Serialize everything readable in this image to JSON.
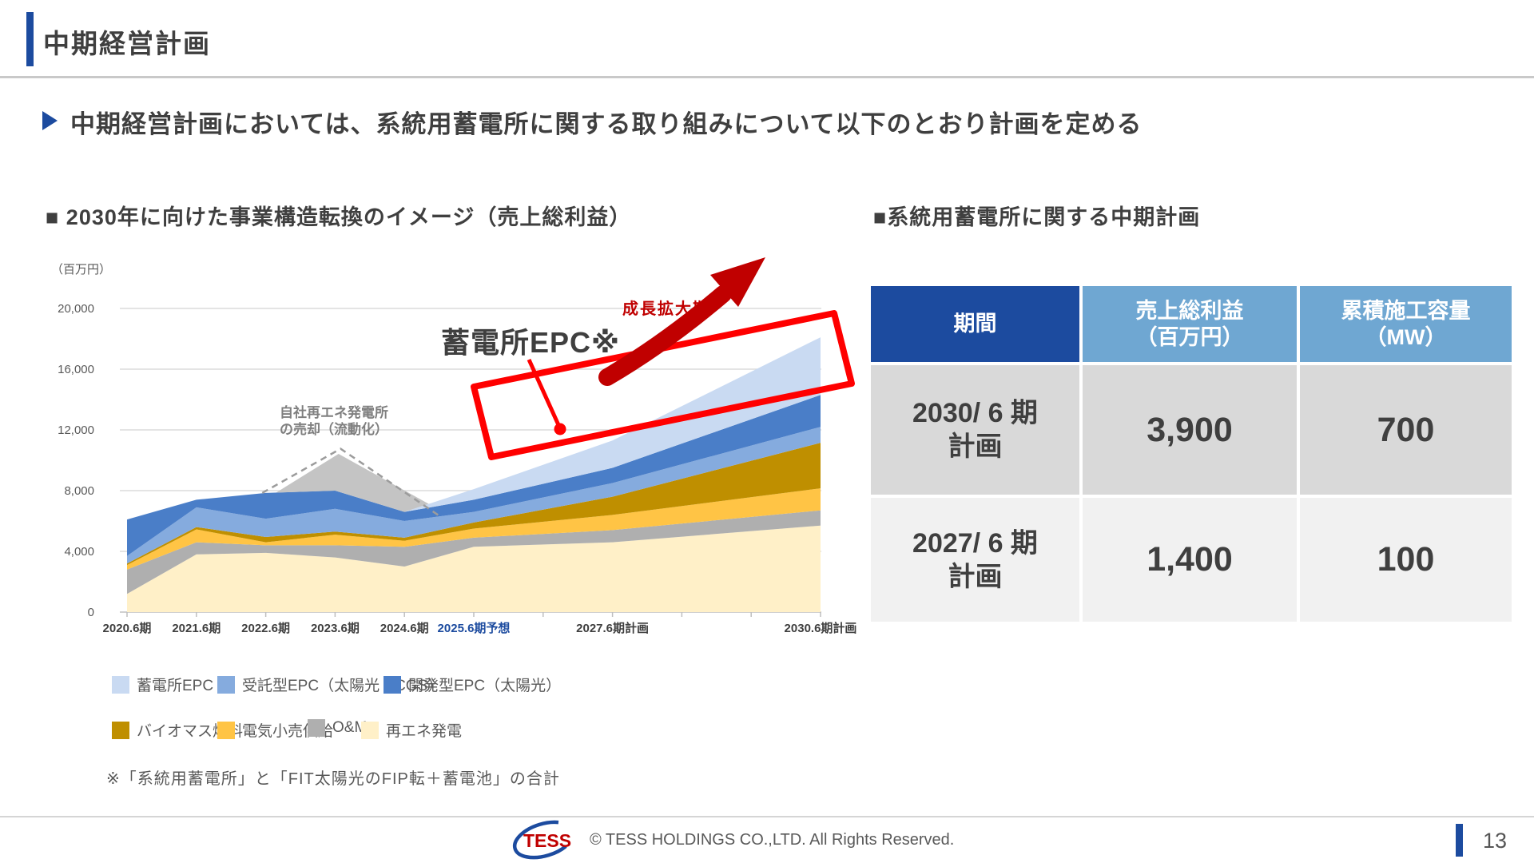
{
  "header": {
    "title": "中期経営計画"
  },
  "lead": {
    "text": "中期経営計画においては、系統用蓄電所に関する取り組みについて以下のとおり計画を定める"
  },
  "sections": {
    "chart_title": "■ 2030年に向けた事業構造転換のイメージ（売上総利益）",
    "table_title": "■系統用蓄電所に関する中期計画"
  },
  "chart_data": {
    "type": "area",
    "stacked": true,
    "title": "2030年に向けた事業構造転換のイメージ（売上総利益）",
    "ylabel": "（百万円）",
    "ylim": [
      0,
      20000
    ],
    "yticks": [
      0,
      4000,
      8000,
      12000,
      16000,
      20000
    ],
    "grid": true,
    "categories": [
      "2020.6期",
      "2021.6期",
      "2022.6期",
      "2023.6期",
      "2024.6期",
      "2025.6期予想",
      "2027.6期計画",
      "2030.6期計画"
    ],
    "x_years": [
      2020,
      2021,
      2022,
      2023,
      2024,
      2025,
      2027,
      2030
    ],
    "emphasis_index": 5,
    "series": [
      {
        "name": "再エネ発電",
        "color": "#FFF0C8",
        "values": [
          1200,
          3800,
          3900,
          3600,
          3000,
          4300,
          4600,
          5700
        ]
      },
      {
        "name": "O&M",
        "color": "#AFAFAF",
        "values": [
          1600,
          800,
          500,
          800,
          1300,
          600,
          800,
          1000
        ]
      },
      {
        "name": "電気小売供給",
        "color": "#FFC445",
        "values": [
          300,
          850,
          200,
          700,
          400,
          600,
          1000,
          1450
        ]
      },
      {
        "name": "バイオマス燃料",
        "color": "#BF8F00",
        "values": [
          100,
          150,
          350,
          200,
          200,
          400,
          1200,
          3000
        ]
      },
      {
        "name": "受託型EPC（太陽光・CGS）",
        "color": "#85ABDE",
        "values": [
          500,
          1300,
          1200,
          1500,
          1100,
          700,
          900,
          1050
        ]
      },
      {
        "name": "開発型EPC（太陽光）",
        "color": "#4A7EC8",
        "values": [
          2400,
          500,
          1700,
          1200,
          600,
          800,
          1000,
          2100
        ]
      },
      {
        "name": "蓄電所EPC",
        "color": "#C9DAF2",
        "values": [
          0,
          0,
          0,
          0,
          0,
          700,
          1800,
          3800
        ]
      }
    ],
    "overlay": {
      "name": "自社再エネ発電所の売却（流動化）",
      "fill_color": "#C4C4C4",
      "dash_color": "#9C9C9C",
      "fill_points": [
        [
          2022.15,
          7870
        ],
        [
          2023.05,
          10420
        ],
        [
          2024.35,
          7125
        ],
        [
          2024.0,
          6600
        ],
        [
          2023.5,
          7300
        ],
        [
          2023.0,
          8000
        ],
        [
          2022.5,
          7920
        ]
      ],
      "dash_points": [
        [
          2021.95,
          7850
        ],
        [
          2023.08,
          10760
        ],
        [
          2024.5,
          6350
        ]
      ]
    },
    "annotations": {
      "battery_label": "蓄電所EPC※",
      "growth_label": "成長拡大期",
      "sale_label_line1": "自社再エネ発電所",
      "sale_label_line2": "の売却（流動化）",
      "highlight_color": "#FF0000",
      "arrow_color": "#C00000"
    }
  },
  "legend": {
    "items": [
      {
        "label": "蓄電所EPC",
        "color": "#C9DAF2"
      },
      {
        "label": "受託型EPC（太陽光・CGS）",
        "color": "#85ABDE"
      },
      {
        "label": "開発型EPC（太陽光）",
        "color": "#4A7EC8"
      },
      {
        "label": "バイオマス燃料",
        "color": "#BF8F00"
      },
      {
        "label": "電気小売供給",
        "color": "#FFC445"
      },
      {
        "label": "O&M",
        "color": "#AFAFAF"
      },
      {
        "label": "再エネ発電",
        "color": "#FFF0C8"
      }
    ]
  },
  "footnote": {
    "text": "※「系統用蓄電所」と「FIT太陽光のFIP転＋蓄電池」の合計"
  },
  "table": {
    "headers": [
      {
        "line1": "期間",
        "line2": ""
      },
      {
        "line1": "売上総利益",
        "line2": "（百万円）"
      },
      {
        "line1": "累積施工容量",
        "line2": "（MW）"
      }
    ],
    "rows": [
      {
        "period_line1": "2030/ 6 期",
        "period_line2": "計画",
        "profit": "3,900",
        "capacity": "700"
      },
      {
        "period_line1": "2027/ 6 期",
        "period_line2": "計画",
        "profit": "1,400",
        "capacity": "100"
      }
    ]
  },
  "footer": {
    "logo_text": "TESS",
    "copyright": "© TESS HOLDINGS CO.,LTD. All Rights Reserved.",
    "page_number": "13"
  }
}
